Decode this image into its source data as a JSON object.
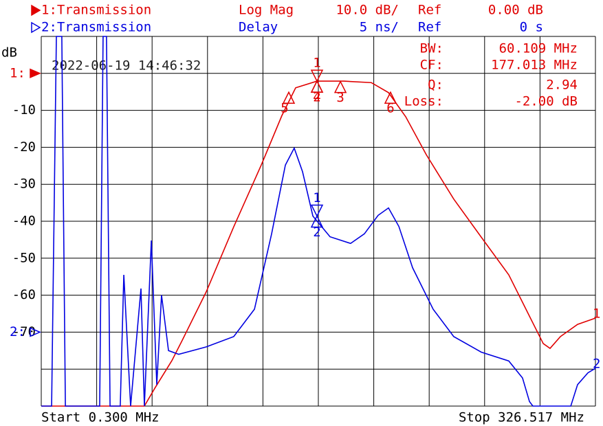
{
  "chart_data": {
    "type": "line",
    "y_unit": "dB",
    "timestamp": "2022-06-19 14:46:32",
    "start_label": "Start 0.300 MHz",
    "stop_label": "Stop 326.517 MHz",
    "xlim": [
      0.3,
      326.517
    ],
    "ylim": [
      -90,
      10
    ],
    "yticks": [
      -10,
      -20,
      -30,
      -40,
      -50,
      -60,
      -70
    ],
    "y2lim": [
      -10,
      40
    ],
    "grid": true,
    "readouts": [
      {
        "label": "BW:",
        "value": "60.109 MHz"
      },
      {
        "label": "CF:",
        "value": "177.013 MHz"
      },
      {
        "label": "Q:",
        "value": "2.94"
      },
      {
        "label": "Loss:",
        "value": "-2.00 dB"
      }
    ],
    "series": [
      {
        "name": "1:Transmission",
        "end_label": "1",
        "ref_label": "1:",
        "format": "Log Mag",
        "scale": "10.0 dB/",
        "ref_text": "Ref",
        "ref_value": "0.00 dB",
        "color": "#e00000",
        "x": [
          0.3,
          61.0,
          67.1,
          77.2,
          83.3,
          97.4,
          113.6,
          129.8,
          141.96,
          150.05,
          162.6,
          178.4,
          194.6,
          204.7,
          214.8,
          226.95,
          243.1,
          259.3,
          275.5,
          287.7,
          295.8,
          299.8,
          305.9,
          316.0,
          326.5
        ],
        "values": [
          -90,
          -90,
          -85.2,
          -77.7,
          -72.2,
          -59.1,
          -41.5,
          -24.8,
          -11.4,
          -3.9,
          -2.1,
          -2.1,
          -2.5,
          -5.2,
          -11.7,
          -22,
          -34,
          -44.3,
          -54.5,
          -65.7,
          -73.1,
          -74.4,
          -71.2,
          -67.9,
          -66.2
        ],
        "markers": [
          {
            "label": "1",
            "x": 162.6,
            "value": -2.1
          },
          {
            "label": "2",
            "x": 162.6,
            "value": -2.1
          },
          {
            "label": "3",
            "x": 176.4,
            "value": -2.2
          },
          {
            "label": "4",
            "x": 162.6,
            "value": -2.1
          },
          {
            "label": "5",
            "x": 146.0,
            "value": -5.1
          },
          {
            "label": "6",
            "x": 205.9,
            "value": -5.1
          }
        ]
      },
      {
        "name": "2:Transmission",
        "end_label": "2",
        "ref_label": "2:",
        "format": "Delay",
        "scale": "5 ns/",
        "ref_text": "Ref",
        "ref_value": "0 s",
        "color": "#0000e0",
        "axis": "y2",
        "x": [
          0.3,
          6.4,
          9.2,
          12.4,
          14.5,
          34.7,
          36.7,
          38.7,
          40.8,
          46.8,
          48.9,
          52.9,
          59.0,
          61.0,
          65.1,
          68.3,
          71.1,
          75.2,
          81.2,
          97.4,
          113.6,
          125.8,
          135.9,
          144.0,
          149.2,
          154.1,
          160.2,
          170.3,
          182.4,
          190.5,
          198.6,
          204.7,
          210.8,
          218.9,
          231.0,
          243.1,
          259.3,
          275.5,
          283.6,
          287.7,
          289.7,
          312.0,
          316.0,
          322.1,
          326.5
        ],
        "values": [
          -10,
          -10,
          40,
          40,
          -10,
          -10,
          40,
          40,
          -10,
          -10,
          7.75,
          -10,
          5.9,
          -10,
          12.4,
          -7.1,
          5.0,
          -2.5,
          -3.0,
          -2.0,
          -0.6,
          3.1,
          13.3,
          22.6,
          24.9,
          21.7,
          15.7,
          12.9,
          12.0,
          13.3,
          15.8,
          16.8,
          14.3,
          8.7,
          3.1,
          -0.6,
          -2.7,
          -3.9,
          -6.2,
          -9.4,
          -10,
          -10,
          -7.1,
          -5.5,
          -4.9
        ],
        "markers": [
          {
            "label": "1",
            "x": 162.6,
            "value": 15.7
          },
          {
            "label": "2",
            "x": 162.6,
            "value": 15.7
          }
        ]
      }
    ]
  }
}
